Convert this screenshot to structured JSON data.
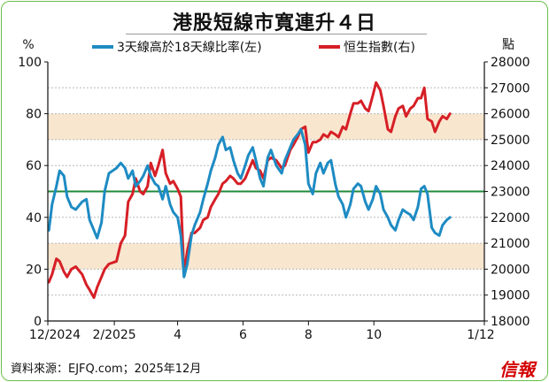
{
  "title": "港股短線市寬連升４日",
  "source": "資料來源：EJFQ.com；2025年12月",
  "logo": "信報",
  "colors": {
    "breadth": "#1e8bc3",
    "hsi": "#d61f26",
    "threshold": "#1f8a3a",
    "band": "#f9e6cf",
    "grid": "#b8b8b8"
  },
  "chart_data": {
    "type": "line",
    "left_axis": {
      "unit": "%",
      "range": [
        0,
        100
      ],
      "ticks": [
        0,
        20,
        40,
        60,
        80,
        100
      ]
    },
    "right_axis": {
      "unit": "點",
      "range": [
        18000,
        28000
      ],
      "ticks": [
        18000,
        19000,
        20000,
        21000,
        22000,
        23000,
        24000,
        25000,
        26000,
        27000,
        28000
      ]
    },
    "x_range": [
      "2024-12-01",
      "2026-01-12"
    ],
    "x_ticks": [
      {
        "date": "2024-12-01",
        "label": "12/2024"
      },
      {
        "date": "2025-02-01",
        "label": "2/2025"
      },
      {
        "date": "2025-04-01",
        "label": "4"
      },
      {
        "date": "2025-06-01",
        "label": "6"
      },
      {
        "date": "2025-08-01",
        "label": "8"
      },
      {
        "date": "2025-10-01",
        "label": "10"
      },
      {
        "date": "2026-01-12",
        "label": "1/12"
      }
    ],
    "shaded_bands": [
      [
        20,
        30
      ],
      [
        70,
        80
      ]
    ],
    "reference_line": 50,
    "series": [
      {
        "name": "3天線高於18天線比率(左)",
        "axis": "left",
        "points": [
          [
            "2024-12-02",
            35
          ],
          [
            "2024-12-05",
            45
          ],
          [
            "2024-12-09",
            52
          ],
          [
            "2024-12-12",
            58
          ],
          [
            "2024-12-16",
            56
          ],
          [
            "2024-12-19",
            48
          ],
          [
            "2024-12-23",
            44
          ],
          [
            "2024-12-27",
            43
          ],
          [
            "2025-01-02",
            46
          ],
          [
            "2025-01-06",
            47
          ],
          [
            "2025-01-09",
            39
          ],
          [
            "2025-01-13",
            35
          ],
          [
            "2025-01-16",
            32
          ],
          [
            "2025-01-20",
            38
          ],
          [
            "2025-01-23",
            50
          ],
          [
            "2025-01-27",
            57
          ],
          [
            "2025-02-03",
            59
          ],
          [
            "2025-02-07",
            61
          ],
          [
            "2025-02-11",
            59
          ],
          [
            "2025-02-14",
            55
          ],
          [
            "2025-02-18",
            58
          ],
          [
            "2025-02-21",
            52
          ],
          [
            "2025-02-25",
            54
          ],
          [
            "2025-02-28",
            56
          ],
          [
            "2025-03-04",
            60
          ],
          [
            "2025-03-07",
            56
          ],
          [
            "2025-03-11",
            53
          ],
          [
            "2025-03-14",
            52
          ],
          [
            "2025-03-18",
            47
          ],
          [
            "2025-03-21",
            52
          ],
          [
            "2025-03-25",
            45
          ],
          [
            "2025-03-28",
            42
          ],
          [
            "2025-04-01",
            40
          ],
          [
            "2025-04-04",
            33
          ],
          [
            "2025-04-07",
            17
          ],
          [
            "2025-04-10",
            22
          ],
          [
            "2025-04-14",
            33
          ],
          [
            "2025-04-17",
            37
          ],
          [
            "2025-04-22",
            42
          ],
          [
            "2025-04-25",
            47
          ],
          [
            "2025-04-29",
            53
          ],
          [
            "2025-05-02",
            58
          ],
          [
            "2025-05-06",
            63
          ],
          [
            "2025-05-09",
            68
          ],
          [
            "2025-05-13",
            71
          ],
          [
            "2025-05-16",
            66
          ],
          [
            "2025-05-20",
            67
          ],
          [
            "2025-05-23",
            62
          ],
          [
            "2025-05-27",
            57
          ],
          [
            "2025-05-30",
            55
          ],
          [
            "2025-06-03",
            60
          ],
          [
            "2025-06-06",
            64
          ],
          [
            "2025-06-10",
            67
          ],
          [
            "2025-06-13",
            62
          ],
          [
            "2025-06-17",
            55
          ],
          [
            "2025-06-20",
            52
          ],
          [
            "2025-06-24",
            63
          ],
          [
            "2025-06-27",
            66
          ],
          [
            "2025-07-02",
            60
          ],
          [
            "2025-07-07",
            57
          ],
          [
            "2025-07-10",
            62
          ],
          [
            "2025-07-15",
            67
          ],
          [
            "2025-07-18",
            70
          ],
          [
            "2025-07-22",
            72
          ],
          [
            "2025-07-25",
            74
          ],
          [
            "2025-07-29",
            68
          ],
          [
            "2025-08-01",
            53
          ],
          [
            "2025-08-05",
            49
          ],
          [
            "2025-08-08",
            57
          ],
          [
            "2025-08-12",
            61
          ],
          [
            "2025-08-15",
            57
          ],
          [
            "2025-08-19",
            61
          ],
          [
            "2025-08-22",
            62
          ],
          [
            "2025-08-26",
            53
          ],
          [
            "2025-08-29",
            48
          ],
          [
            "2025-09-02",
            45
          ],
          [
            "2025-09-05",
            40
          ],
          [
            "2025-09-09",
            45
          ],
          [
            "2025-09-12",
            51
          ],
          [
            "2025-09-16",
            53
          ],
          [
            "2025-09-19",
            52
          ],
          [
            "2025-09-23",
            46
          ],
          [
            "2025-09-26",
            43
          ],
          [
            "2025-09-30",
            47
          ],
          [
            "2025-10-03",
            52
          ],
          [
            "2025-10-07",
            49
          ],
          [
            "2025-10-10",
            43
          ],
          [
            "2025-10-14",
            40
          ],
          [
            "2025-10-17",
            37
          ],
          [
            "2025-10-21",
            35
          ],
          [
            "2025-10-24",
            39
          ],
          [
            "2025-10-28",
            43
          ],
          [
            "2025-10-31",
            42
          ],
          [
            "2025-11-04",
            41
          ],
          [
            "2025-11-07",
            39
          ],
          [
            "2025-11-11",
            44
          ],
          [
            "2025-11-14",
            51
          ],
          [
            "2025-11-17",
            52
          ],
          [
            "2025-11-20",
            49
          ],
          [
            "2025-11-24",
            36
          ],
          [
            "2025-11-27",
            34
          ],
          [
            "2025-12-01",
            33
          ],
          [
            "2025-12-04",
            37
          ],
          [
            "2025-12-08",
            39
          ],
          [
            "2025-12-11",
            40
          ]
        ]
      },
      {
        "name": "恒生指數(右)",
        "axis": "right",
        "points": [
          [
            "2024-12-02",
            19500
          ],
          [
            "2024-12-05",
            19800
          ],
          [
            "2024-12-09",
            20400
          ],
          [
            "2024-12-12",
            20300
          ],
          [
            "2024-12-16",
            19900
          ],
          [
            "2024-12-19",
            19700
          ],
          [
            "2024-12-23",
            20000
          ],
          [
            "2024-12-27",
            20100
          ],
          [
            "2025-01-02",
            19800
          ],
          [
            "2025-01-06",
            19400
          ],
          [
            "2025-01-09",
            19200
          ],
          [
            "2025-01-13",
            18900
          ],
          [
            "2025-01-16",
            19300
          ],
          [
            "2025-01-20",
            19700
          ],
          [
            "2025-01-23",
            20000
          ],
          [
            "2025-01-27",
            20200
          ],
          [
            "2025-02-03",
            20300
          ],
          [
            "2025-02-07",
            21000
          ],
          [
            "2025-02-11",
            21300
          ],
          [
            "2025-02-14",
            22600
          ],
          [
            "2025-02-18",
            22900
          ],
          [
            "2025-02-21",
            23500
          ],
          [
            "2025-02-25",
            23000
          ],
          [
            "2025-02-28",
            22900
          ],
          [
            "2025-03-04",
            23200
          ],
          [
            "2025-03-07",
            24100
          ],
          [
            "2025-03-11",
            23600
          ],
          [
            "2025-03-14",
            24000
          ],
          [
            "2025-03-18",
            24600
          ],
          [
            "2025-03-21",
            23700
          ],
          [
            "2025-03-25",
            23300
          ],
          [
            "2025-03-28",
            23400
          ],
          [
            "2025-04-01",
            23100
          ],
          [
            "2025-04-04",
            22800
          ],
          [
            "2025-04-07",
            19800
          ],
          [
            "2025-04-10",
            20700
          ],
          [
            "2025-04-14",
            21400
          ],
          [
            "2025-04-17",
            21400
          ],
          [
            "2025-04-22",
            21600
          ],
          [
            "2025-04-25",
            21900
          ],
          [
            "2025-04-29",
            22000
          ],
          [
            "2025-05-02",
            22400
          ],
          [
            "2025-05-06",
            22700
          ],
          [
            "2025-05-09",
            22900
          ],
          [
            "2025-05-13",
            23300
          ],
          [
            "2025-05-16",
            23400
          ],
          [
            "2025-05-20",
            23600
          ],
          [
            "2025-05-23",
            23500
          ],
          [
            "2025-05-27",
            23300
          ],
          [
            "2025-05-30",
            23300
          ],
          [
            "2025-06-03",
            23500
          ],
          [
            "2025-06-06",
            23800
          ],
          [
            "2025-06-10",
            24200
          ],
          [
            "2025-06-13",
            23900
          ],
          [
            "2025-06-17",
            23800
          ],
          [
            "2025-06-20",
            23500
          ],
          [
            "2025-06-24",
            24200
          ],
          [
            "2025-06-27",
            24300
          ],
          [
            "2025-07-02",
            24200
          ],
          [
            "2025-07-07",
            23900
          ],
          [
            "2025-07-10",
            24000
          ],
          [
            "2025-07-15",
            24600
          ],
          [
            "2025-07-18",
            24800
          ],
          [
            "2025-07-22",
            25100
          ],
          [
            "2025-07-25",
            25400
          ],
          [
            "2025-07-29",
            25500
          ],
          [
            "2025-08-01",
            24500
          ],
          [
            "2025-08-05",
            24900
          ],
          [
            "2025-08-08",
            24900
          ],
          [
            "2025-08-12",
            25000
          ],
          [
            "2025-08-15",
            25200
          ],
          [
            "2025-08-19",
            25100
          ],
          [
            "2025-08-22",
            25300
          ],
          [
            "2025-08-26",
            25200
          ],
          [
            "2025-08-29",
            25100
          ],
          [
            "2025-09-02",
            25500
          ],
          [
            "2025-09-05",
            25400
          ],
          [
            "2025-09-09",
            26000
          ],
          [
            "2025-09-12",
            26400
          ],
          [
            "2025-09-16",
            26400
          ],
          [
            "2025-09-19",
            26500
          ],
          [
            "2025-09-23",
            26200
          ],
          [
            "2025-09-26",
            26100
          ],
          [
            "2025-09-30",
            26700
          ],
          [
            "2025-10-03",
            27200
          ],
          [
            "2025-10-07",
            26900
          ],
          [
            "2025-10-10",
            26300
          ],
          [
            "2025-10-14",
            25400
          ],
          [
            "2025-10-17",
            25300
          ],
          [
            "2025-10-21",
            25900
          ],
          [
            "2025-10-24",
            26200
          ],
          [
            "2025-10-28",
            26300
          ],
          [
            "2025-10-31",
            25900
          ],
          [
            "2025-11-04",
            26200
          ],
          [
            "2025-11-07",
            26300
          ],
          [
            "2025-11-11",
            26600
          ],
          [
            "2025-11-14",
            26600
          ],
          [
            "2025-11-17",
            27000
          ],
          [
            "2025-11-20",
            25800
          ],
          [
            "2025-11-24",
            25700
          ],
          [
            "2025-11-27",
            25300
          ],
          [
            "2025-12-01",
            25700
          ],
          [
            "2025-12-04",
            25900
          ],
          [
            "2025-12-08",
            25800
          ],
          [
            "2025-12-11",
            26000
          ]
        ]
      }
    ]
  }
}
